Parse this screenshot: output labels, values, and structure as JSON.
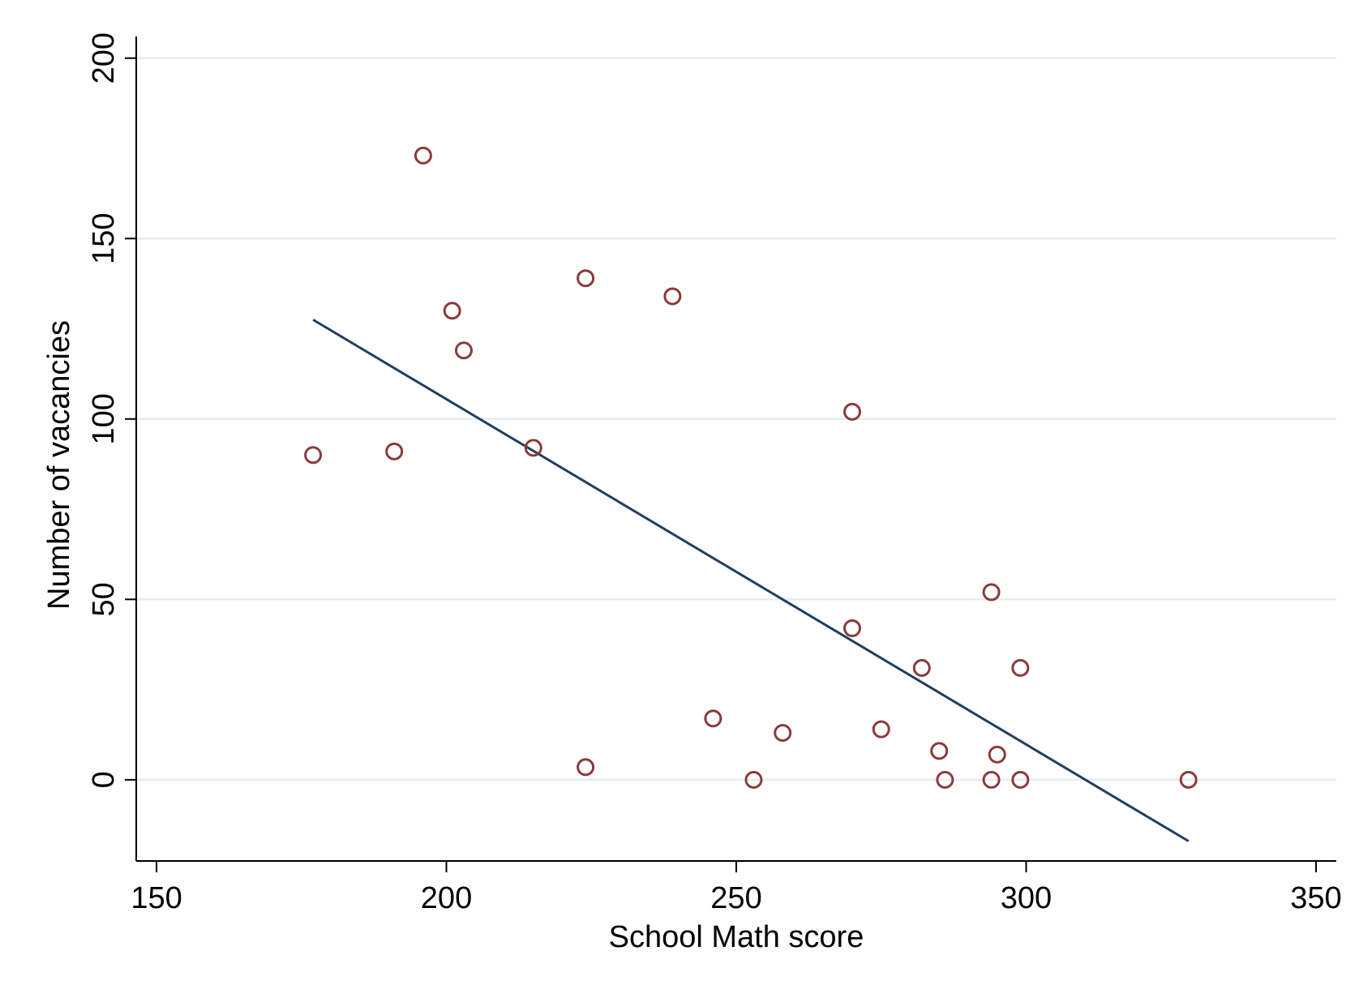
{
  "chart_data": {
    "type": "scatter",
    "title": "",
    "xlabel": "School Math score",
    "ylabel": "Number of vacancies",
    "xlim": [
      146.5,
      353.5
    ],
    "ylim": [
      -22.5,
      206
    ],
    "x_ticks": [
      150,
      200,
      250,
      300,
      350
    ],
    "y_ticks": [
      0,
      50,
      100,
      150,
      200
    ],
    "grid": "horizontal",
    "colors": {
      "points": "#8b3a3a",
      "fit_line": "#1f3f60",
      "grid": "#e6ecf0",
      "axes": "#000000"
    },
    "points": [
      {
        "x": 177,
        "y": 90
      },
      {
        "x": 191,
        "y": 91
      },
      {
        "x": 196,
        "y": 173
      },
      {
        "x": 201,
        "y": 130
      },
      {
        "x": 203,
        "y": 119
      },
      {
        "x": 215,
        "y": 92
      },
      {
        "x": 224,
        "y": 139
      },
      {
        "x": 224,
        "y": 3.5
      },
      {
        "x": 239,
        "y": 134
      },
      {
        "x": 246,
        "y": 17
      },
      {
        "x": 253,
        "y": 0
      },
      {
        "x": 258,
        "y": 13
      },
      {
        "x": 270,
        "y": 102
      },
      {
        "x": 270,
        "y": 42
      },
      {
        "x": 275,
        "y": 14
      },
      {
        "x": 282,
        "y": 31
      },
      {
        "x": 285,
        "y": 8
      },
      {
        "x": 286,
        "y": 0
      },
      {
        "x": 294,
        "y": 52
      },
      {
        "x": 294,
        "y": 0
      },
      {
        "x": 295,
        "y": 7
      },
      {
        "x": 299,
        "y": 31
      },
      {
        "x": 299,
        "y": 0
      },
      {
        "x": 328,
        "y": 0
      }
    ],
    "fit_line": {
      "x": [
        177,
        328
      ],
      "y": [
        127.5,
        -17
      ]
    }
  }
}
